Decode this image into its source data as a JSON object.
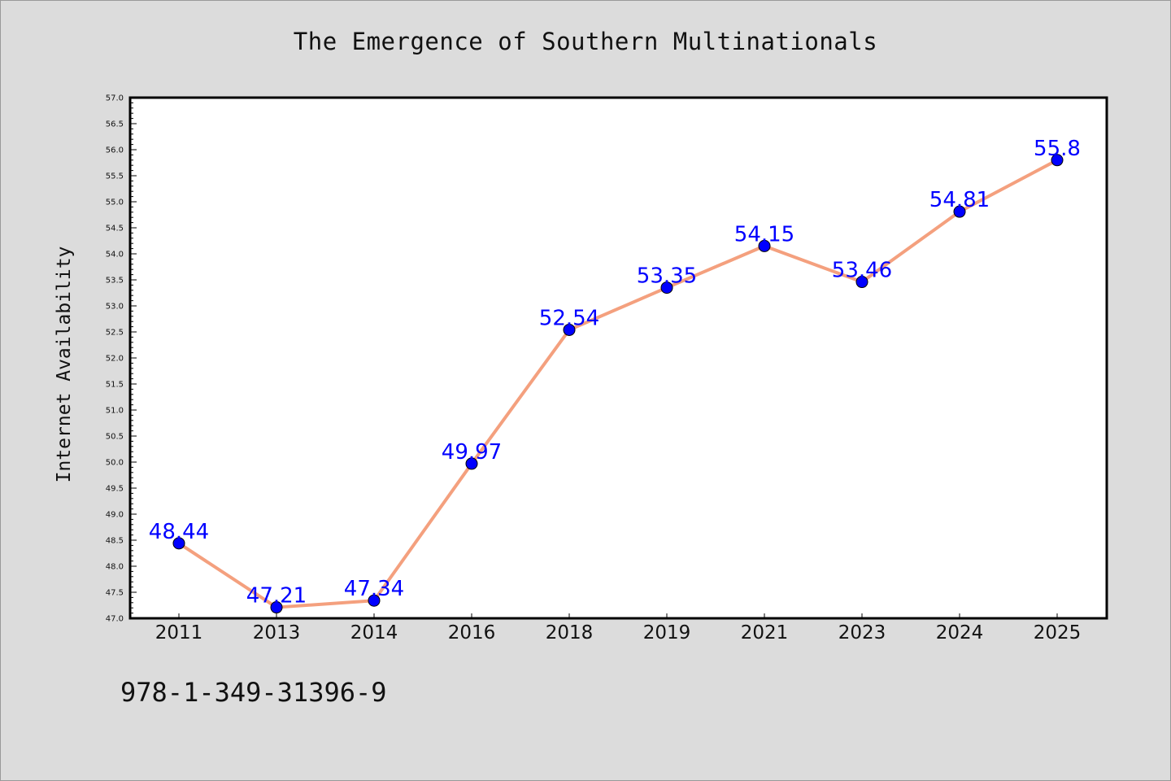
{
  "page": {
    "background": "#dcdcdc",
    "footer_code": "978-1-349-31396-9"
  },
  "chart_data": {
    "type": "line",
    "title": "The Emergence of Southern Multinationals",
    "xlabel": "",
    "ylabel": "Internet Availability",
    "categories": [
      "2011",
      "2013",
      "2014",
      "2016",
      "2018",
      "2019",
      "2021",
      "2023",
      "2024",
      "2025"
    ],
    "series": [
      {
        "values": [
          48.44,
          47.21,
          47.34,
          49.97,
          52.54,
          53.35,
          54.15,
          53.46,
          54.81,
          55.8
        ],
        "line_color": "#f4a07e",
        "marker_color": "#0000ff"
      }
    ],
    "data_labels": [
      "48.44",
      "47.21",
      "47.34",
      "49.97",
      "52.54",
      "53.35",
      "54.15",
      "53.46",
      "54.81",
      "55.8"
    ],
    "ylim": [
      47.0,
      57.0
    ],
    "yticks": [
      "47.0",
      "47.5",
      "48.0",
      "48.5",
      "49.0",
      "49.5",
      "50.0",
      "50.5",
      "51.0",
      "51.5",
      "52.0",
      "52.5",
      "53.0",
      "53.5",
      "54.0",
      "54.5",
      "55.0",
      "55.5",
      "56.0",
      "56.5",
      "57.0"
    ],
    "grid": false,
    "legend": "none",
    "label_color": "#0000ff"
  }
}
